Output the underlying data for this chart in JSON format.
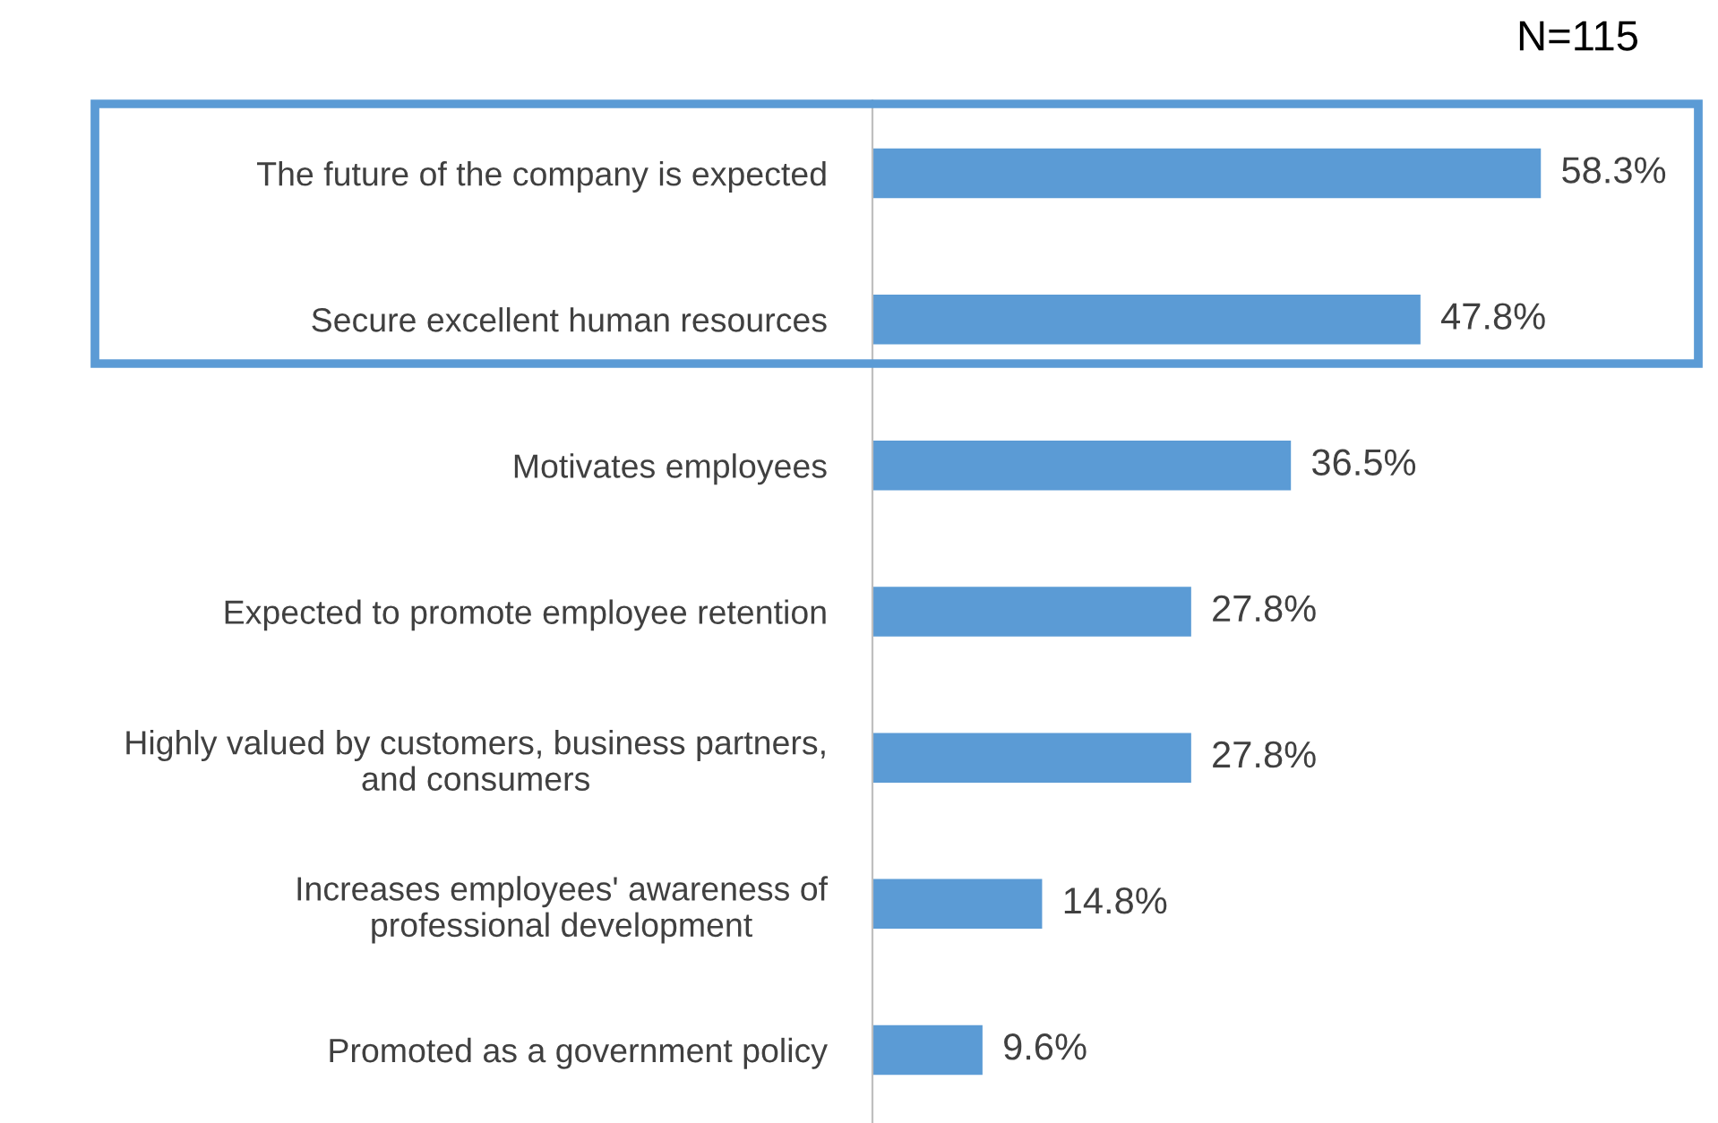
{
  "chart_data": {
    "type": "bar",
    "orientation": "horizontal",
    "categories": [
      "The future of the company is expected",
      "Secure excellent human resources",
      "Motivates employees",
      "Expected to promote employee retention",
      "Highly valued by customers, business partners,\nand consumers",
      "Increases employees' awareness of\nprofessional development",
      "Promoted as a government policy"
    ],
    "values": [
      58.3,
      47.8,
      36.5,
      27.8,
      27.8,
      14.8,
      9.6
    ],
    "value_labels": [
      "58.3%",
      "47.8%",
      "36.5%",
      "27.8%",
      "27.8%",
      "14.8%",
      "9.6%"
    ],
    "color": "#5b9bd5",
    "grid": false,
    "annotations": [
      "N=115"
    ]
  }
}
